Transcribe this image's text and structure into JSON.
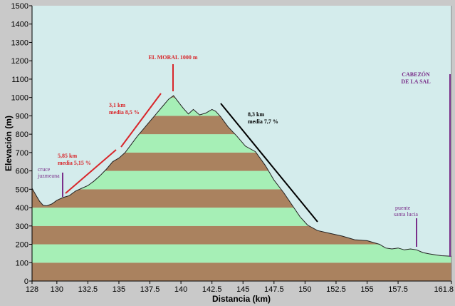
{
  "colors": {
    "background": "#c9c9c9",
    "plot_bg": "#d4ecec",
    "band_green": "#a6efb6",
    "band_brown": "#aa825f",
    "red": "#d8262a",
    "purple": "#7a2f8a",
    "black": "#000000"
  },
  "chart_data": {
    "type": "area",
    "xlabel": "Distancia   (km)",
    "ylabel": "Elevación (m)",
    "xlim": [
      128,
      161.8
    ],
    "ylim": [
      0,
      1500
    ],
    "x_ticks": [
      "128",
      "130",
      "132.5",
      "135",
      "137.5",
      "140",
      "142.5",
      "145",
      "147.5",
      "150",
      "152.5",
      "155",
      "157.5",
      "161.8"
    ],
    "y_ticks": [
      "0",
      "100",
      "200",
      "300",
      "400",
      "500",
      "600",
      "700",
      "800",
      "900",
      "1000",
      "1100",
      "1200",
      "1300",
      "1400",
      "1500"
    ],
    "grid": false,
    "series": [
      {
        "x": [
          128,
          128.3,
          128.6,
          128.9,
          129.2,
          129.6,
          130.0,
          130.5,
          131.0,
          131.5,
          132.0,
          132.5,
          133.0,
          133.5,
          134.0,
          134.5,
          135.0,
          135.5,
          136.0,
          136.5,
          137.0,
          137.5,
          138.0,
          138.5,
          139.0,
          139.4,
          139.8,
          140.2,
          140.6,
          141.0,
          141.5,
          142.0,
          142.5,
          142.8,
          143.2,
          143.8,
          144.5,
          145.2,
          146.0,
          146.8,
          147.5,
          148.3,
          149.0,
          149.6,
          150.2,
          151.0,
          152.0,
          153.0,
          154.0,
          155.0,
          156.0,
          156.5,
          157.0,
          157.5,
          158.0,
          158.5,
          159.0,
          159.5,
          160.0,
          160.5,
          161.0,
          161.8
        ],
        "y": [
          505,
          470,
          435,
          412,
          410,
          420,
          440,
          455,
          465,
          490,
          505,
          520,
          545,
          575,
          610,
          650,
          670,
          700,
          745,
          790,
          830,
          870,
          910,
          950,
          990,
          1010,
          975,
          940,
          910,
          935,
          905,
          915,
          935,
          925,
          895,
          840,
          790,
          735,
          705,
          630,
          550,
          480,
          410,
          350,
          305,
          275,
          260,
          245,
          225,
          220,
          200,
          180,
          175,
          180,
          170,
          175,
          170,
          155,
          148,
          143,
          138,
          135
        ]
      }
    ],
    "annotations": {
      "summit": "EL MORAL 1000 m",
      "seg1_distance": "5,85 km",
      "seg1_grade": "media 5,15 %",
      "seg2_distance": "3,1 km",
      "seg2_grade": "media 8,5 %",
      "seg3_distance": "8,3 km",
      "seg3_grade": "media 7,7 %",
      "cruce_1": "cruce",
      "cruce_2": "juzmeana",
      "puente_1": "puente",
      "puente_2": "santa lucia",
      "finish_1": "CABEZÓN",
      "finish_2": "DE LA SAL"
    }
  }
}
